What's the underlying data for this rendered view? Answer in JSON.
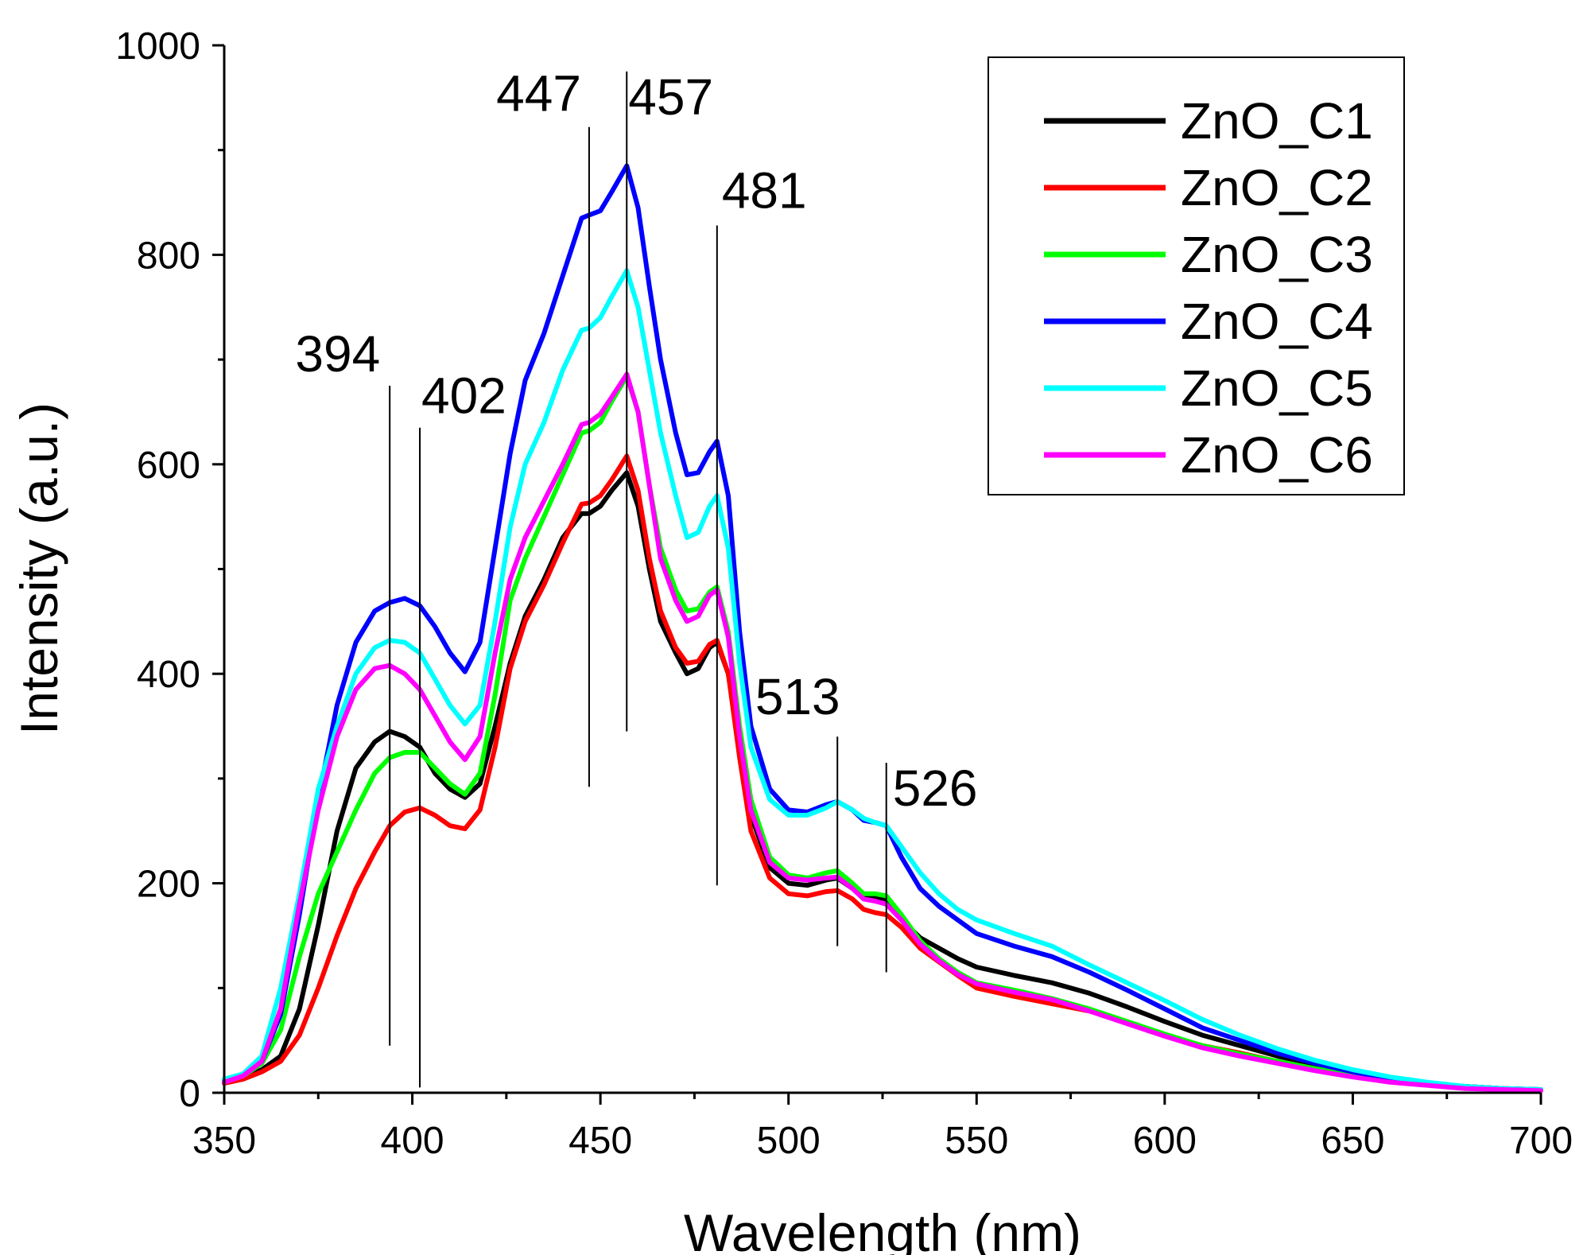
{
  "chart_data": {
    "type": "line",
    "title": "",
    "xlabel": "Wavelength (nm)",
    "ylabel": "Intensity (a.u.)",
    "xlim": [
      350,
      700
    ],
    "ylim": [
      0,
      1000
    ],
    "x_ticks": [
      "350",
      "400",
      "450",
      "500",
      "550",
      "600",
      "650",
      "700"
    ],
    "y_ticks": [
      "0",
      "200",
      "400",
      "600",
      "800",
      "1000"
    ],
    "grid": false,
    "legend_position": "top-right",
    "x": [
      350,
      355,
      360,
      365,
      370,
      375,
      380,
      385,
      390,
      394,
      398,
      402,
      406,
      410,
      414,
      418,
      422,
      426,
      430,
      435,
      440,
      445,
      447,
      450,
      453,
      457,
      460,
      463,
      466,
      470,
      473,
      476,
      479,
      481,
      484,
      487,
      490,
      495,
      500,
      505,
      510,
      513,
      517,
      520,
      523,
      526,
      530,
      535,
      540,
      545,
      550,
      560,
      570,
      580,
      590,
      600,
      610,
      620,
      630,
      640,
      650,
      660,
      670,
      680,
      690,
      700
    ],
    "series": [
      {
        "name": "ZnO_C1",
        "color": "#000000",
        "values": [
          10,
          15,
          22,
          35,
          80,
          160,
          250,
          310,
          335,
          345,
          340,
          330,
          305,
          290,
          282,
          295,
          350,
          410,
          455,
          490,
          530,
          553,
          553,
          560,
          575,
          592,
          560,
          500,
          450,
          420,
          400,
          405,
          425,
          430,
          400,
          330,
          265,
          215,
          200,
          198,
          203,
          205,
          195,
          188,
          187,
          185,
          165,
          148,
          138,
          128,
          120,
          112,
          105,
          95,
          82,
          68,
          55,
          45,
          35,
          27,
          20,
          14,
          9,
          6,
          4,
          3
        ]
      },
      {
        "name": "ZnO_C2",
        "color": "#ff0000",
        "values": [
          9,
          13,
          20,
          30,
          55,
          100,
          150,
          195,
          230,
          255,
          268,
          272,
          265,
          255,
          252,
          270,
          330,
          405,
          450,
          485,
          525,
          562,
          563,
          570,
          585,
          608,
          575,
          510,
          460,
          425,
          410,
          412,
          428,
          432,
          400,
          320,
          250,
          205,
          190,
          188,
          192,
          193,
          185,
          175,
          172,
          170,
          158,
          138,
          125,
          112,
          100,
          92,
          85,
          78,
          68,
          55,
          45,
          38,
          30,
          23,
          17,
          12,
          8,
          5,
          3,
          3
        ]
      },
      {
        "name": "ZnO_C3",
        "color": "#00ff00",
        "values": [
          10,
          16,
          28,
          60,
          130,
          190,
          230,
          270,
          305,
          320,
          325,
          325,
          310,
          295,
          285,
          305,
          380,
          470,
          510,
          550,
          590,
          630,
          632,
          640,
          660,
          684,
          650,
          580,
          520,
          480,
          460,
          462,
          478,
          483,
          440,
          350,
          280,
          225,
          208,
          205,
          210,
          212,
          200,
          190,
          190,
          188,
          170,
          145,
          128,
          115,
          105,
          98,
          90,
          80,
          68,
          56,
          45,
          37,
          30,
          23,
          17,
          12,
          8,
          5,
          3,
          3
        ]
      },
      {
        "name": "ZnO_C4",
        "color": "#0000ff",
        "values": [
          12,
          17,
          30,
          75,
          170,
          280,
          370,
          430,
          460,
          468,
          472,
          465,
          445,
          420,
          402,
          430,
          520,
          610,
          680,
          725,
          780,
          835,
          838,
          842,
          860,
          885,
          845,
          770,
          700,
          630,
          590,
          592,
          612,
          622,
          570,
          440,
          350,
          290,
          270,
          268,
          275,
          278,
          270,
          260,
          258,
          255,
          225,
          195,
          178,
          165,
          152,
          140,
          130,
          115,
          98,
          80,
          62,
          50,
          38,
          28,
          20,
          13,
          9,
          6,
          4,
          3
        ]
      },
      {
        "name": "ZnO_C5",
        "color": "#00ffff",
        "values": [
          13,
          18,
          35,
          100,
          190,
          290,
          350,
          400,
          425,
          432,
          430,
          420,
          395,
          370,
          352,
          370,
          450,
          540,
          600,
          640,
          690,
          728,
          730,
          740,
          760,
          785,
          750,
          690,
          630,
          570,
          530,
          535,
          560,
          570,
          520,
          410,
          330,
          280,
          265,
          265,
          272,
          278,
          270,
          262,
          258,
          255,
          235,
          210,
          190,
          175,
          165,
          152,
          140,
          122,
          105,
          88,
          70,
          55,
          42,
          31,
          22,
          15,
          10,
          6,
          4,
          3
        ]
      },
      {
        "name": "ZnO_C6",
        "color": "#ff00ff",
        "values": [
          10,
          16,
          30,
          80,
          180,
          270,
          340,
          385,
          405,
          408,
          400,
          385,
          360,
          335,
          318,
          340,
          420,
          490,
          530,
          565,
          600,
          638,
          640,
          648,
          664,
          686,
          650,
          580,
          510,
          470,
          450,
          455,
          475,
          480,
          435,
          340,
          270,
          220,
          205,
          203,
          205,
          206,
          195,
          185,
          183,
          180,
          165,
          142,
          126,
          113,
          104,
          96,
          89,
          78,
          66,
          54,
          43,
          35,
          28,
          21,
          15,
          10,
          7,
          4,
          3,
          2
        ]
      }
    ],
    "annotations": [
      {
        "text": "394",
        "x": 394,
        "y_range": [
          45,
          675
        ]
      },
      {
        "text": "402",
        "x": 402,
        "y_range": [
          5,
          635
        ]
      },
      {
        "text": "447",
        "x": 447,
        "y_range": [
          292,
          922
        ]
      },
      {
        "text": "457",
        "x": 457,
        "y_range": [
          345,
          975
        ]
      },
      {
        "text": "481",
        "x": 481,
        "y_range": [
          198,
          828
        ]
      },
      {
        "text": "513",
        "x": 513,
        "y_range": [
          140,
          340
        ]
      },
      {
        "text": "526",
        "x": 526,
        "y_range": [
          115,
          315
        ]
      }
    ]
  }
}
